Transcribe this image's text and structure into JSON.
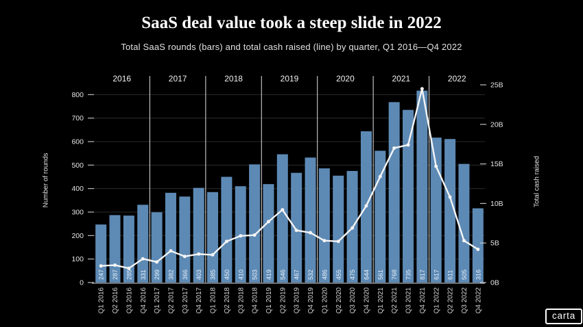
{
  "header": {
    "title": "SaaS deal value took a steep slide in 2022",
    "subtitle": "Total SaaS rounds (bars) and total cash raised (line) by quarter, Q1 2016—Q4 2022"
  },
  "branding": {
    "logo_text": "carta"
  },
  "colors": {
    "background": "#000000",
    "bar": "#5d8ab5",
    "bar_label": "#e8f1fa",
    "line": "#f5f5f5",
    "grid": "#2d2d2d",
    "year_separator": "#cfcfcf",
    "axis_line": "#b5b5b5",
    "axis_text": "#e6e6e6",
    "category_text": "#d6d6d6",
    "year_text": "#f0f0f0",
    "tick_mark": "#cfcfcf"
  },
  "chart_data": {
    "type": "bar+line",
    "title": "SaaS deal value took a steep slide in 2022",
    "subtitle": "Total SaaS rounds (bars) and total cash raised (line) by quarter, Q1 2016—Q4 2022",
    "categories": [
      "Q1 2016",
      "Q2 2016",
      "Q3 2016",
      "Q4 2016",
      "Q1 2017",
      "Q2 2017",
      "Q3 2017",
      "Q4 2017",
      "Q1 2018",
      "Q2 2018",
      "Q3 2018",
      "Q4 2018",
      "Q1 2019",
      "Q2 2019",
      "Q3 2019",
      "Q4 2019",
      "Q1 2020",
      "Q2 2020",
      "Q3 2020",
      "Q4 2020",
      "Q1 2021",
      "Q2 2021",
      "Q3 2021",
      "Q4 2021",
      "Q1 2022",
      "Q2 2022",
      "Q3 2022",
      "Q4 2022"
    ],
    "years": [
      "2016",
      "2017",
      "2018",
      "2019",
      "2020",
      "2021",
      "2022"
    ],
    "quarters_per_year": 4,
    "series": [
      {
        "name": "Total SaaS rounds",
        "render": "bar",
        "axis": "left",
        "values": [
          247,
          287,
          285,
          331,
          299,
          382,
          366,
          403,
          385,
          450,
          410,
          503,
          419,
          546,
          467,
          532,
          486,
          455,
          475,
          644,
          561,
          768,
          735,
          817,
          617,
          611,
          505,
          316
        ],
        "value_labels_shown": true
      },
      {
        "name": "Total cash raised",
        "render": "line",
        "axis": "right",
        "values_usd_billions": [
          2.1,
          2.2,
          1.8,
          3.0,
          2.6,
          4.0,
          3.3,
          3.6,
          3.5,
          5.2,
          5.9,
          6.0,
          7.7,
          9.2,
          6.6,
          6.3,
          5.3,
          5.2,
          6.9,
          9.7,
          13.4,
          17.0,
          17.4,
          24.5,
          14.7,
          10.8,
          5.3,
          4.2
        ]
      }
    ],
    "left_axis": {
      "label": "Number of rounds",
      "min": 0,
      "max": 800,
      "tick_step": 100,
      "tick_values": [
        0,
        100,
        200,
        300,
        400,
        500,
        600,
        700,
        800
      ],
      "tick_labels": [
        "0",
        "100",
        "200",
        "300",
        "400",
        "500",
        "600",
        "700",
        "800"
      ]
    },
    "right_axis": {
      "label": "Total cash raised",
      "min": 0,
      "max": 25,
      "tick_step": 5,
      "tick_values": [
        0,
        5,
        10,
        15,
        20,
        25
      ],
      "tick_labels": [
        "0B",
        "5B",
        "10B",
        "15B",
        "20B",
        "25B"
      ]
    },
    "grid": "horizontal",
    "legend": "none"
  }
}
